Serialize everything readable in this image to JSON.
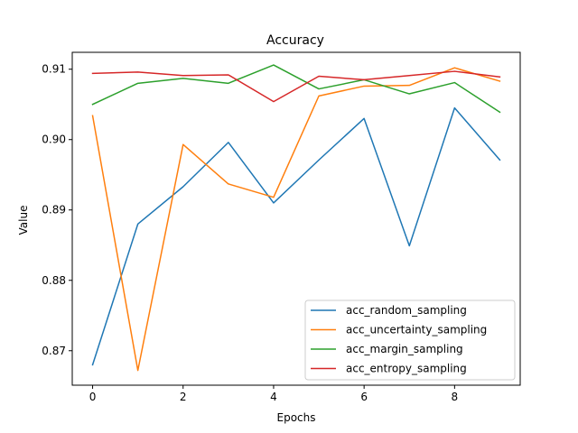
{
  "chart_data": {
    "type": "line",
    "title": "Accuracy",
    "xlabel": "Epochs",
    "ylabel": "Value",
    "x": [
      0,
      1,
      2,
      3,
      4,
      5,
      6,
      7,
      8,
      9
    ],
    "xlim": [
      -0.45,
      9.45
    ],
    "ylim": [
      0.8651,
      0.9124
    ],
    "xticks": [
      0,
      2,
      4,
      6,
      8
    ],
    "yticks": [
      0.87,
      0.88,
      0.89,
      0.9,
      0.91
    ],
    "ytick_labels": [
      "0.87",
      "0.88",
      "0.89",
      "0.90",
      "0.91"
    ],
    "grid": false,
    "legend_position": "lower-right",
    "series": [
      {
        "name": "acc_random_sampling",
        "color": "#1f77b4",
        "values": [
          0.868,
          0.888,
          0.8933,
          0.8996,
          0.891,
          0.8971,
          0.903,
          0.8849,
          0.9045,
          0.8971
        ]
      },
      {
        "name": "acc_uncertainty_sampling",
        "color": "#ff7f0e",
        "values": [
          0.9034,
          0.8672,
          0.8993,
          0.8937,
          0.8918,
          0.9062,
          0.9076,
          0.9077,
          0.9102,
          0.9083
        ]
      },
      {
        "name": "acc_margin_sampling",
        "color": "#2ca02c",
        "values": [
          0.905,
          0.908,
          0.9087,
          0.908,
          0.9106,
          0.9072,
          0.9085,
          0.9065,
          0.9081,
          0.9039
        ]
      },
      {
        "name": "acc_entropy_sampling",
        "color": "#d62728",
        "values": [
          0.9094,
          0.9096,
          0.9091,
          0.9092,
          0.9054,
          0.909,
          0.9085,
          0.9091,
          0.9097,
          0.9089
        ]
      }
    ]
  }
}
